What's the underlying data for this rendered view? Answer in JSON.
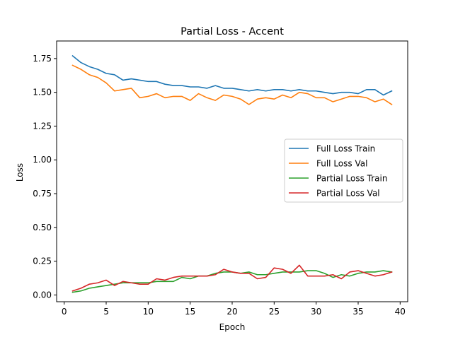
{
  "chart_data": {
    "type": "line",
    "title": "Partial Loss - Accent",
    "xlabel": "Epoch",
    "ylabel": "Loss",
    "xlim": [
      -0.9,
      40.9
    ],
    "ylim": [
      -0.05,
      1.88
    ],
    "xticks": [
      0,
      5,
      10,
      15,
      20,
      25,
      30,
      35,
      40
    ],
    "xtick_labels": [
      "0",
      "5",
      "10",
      "15",
      "20",
      "25",
      "30",
      "35",
      "40"
    ],
    "yticks": [
      0.0,
      0.25,
      0.5,
      0.75,
      1.0,
      1.25,
      1.5,
      1.75
    ],
    "ytick_labels": [
      "0.00",
      "0.25",
      "0.50",
      "0.75",
      "1.00",
      "1.25",
      "1.50",
      "1.75"
    ],
    "grid": false,
    "legend_position": "center-right",
    "x": [
      1,
      2,
      3,
      4,
      5,
      6,
      7,
      8,
      9,
      10,
      11,
      12,
      13,
      14,
      15,
      16,
      17,
      18,
      19,
      20,
      21,
      22,
      23,
      24,
      25,
      26,
      27,
      28,
      29,
      30,
      31,
      32,
      33,
      34,
      35,
      36,
      37,
      38,
      39
    ],
    "series": [
      {
        "name": "Full Loss Train",
        "color": "#1f77b4",
        "values": [
          1.77,
          1.72,
          1.69,
          1.67,
          1.64,
          1.63,
          1.59,
          1.6,
          1.59,
          1.58,
          1.58,
          1.56,
          1.55,
          1.55,
          1.54,
          1.54,
          1.53,
          1.55,
          1.53,
          1.53,
          1.52,
          1.51,
          1.52,
          1.51,
          1.52,
          1.52,
          1.51,
          1.52,
          1.51,
          1.51,
          1.5,
          1.49,
          1.5,
          1.5,
          1.49,
          1.52,
          1.52,
          1.48,
          1.51
        ]
      },
      {
        "name": "Full Loss Val",
        "color": "#ff7f0e",
        "values": [
          1.7,
          1.67,
          1.63,
          1.61,
          1.57,
          1.51,
          1.52,
          1.53,
          1.46,
          1.47,
          1.49,
          1.46,
          1.47,
          1.47,
          1.44,
          1.49,
          1.46,
          1.44,
          1.48,
          1.47,
          1.45,
          1.41,
          1.45,
          1.46,
          1.45,
          1.48,
          1.46,
          1.5,
          1.49,
          1.46,
          1.46,
          1.43,
          1.45,
          1.47,
          1.47,
          1.46,
          1.43,
          1.45,
          1.41
        ]
      },
      {
        "name": "Partial Loss Train",
        "color": "#2ca02c",
        "values": [
          0.02,
          0.03,
          0.05,
          0.06,
          0.07,
          0.08,
          0.09,
          0.09,
          0.09,
          0.09,
          0.1,
          0.1,
          0.1,
          0.13,
          0.12,
          0.14,
          0.14,
          0.16,
          0.17,
          0.17,
          0.16,
          0.17,
          0.15,
          0.15,
          0.16,
          0.17,
          0.17,
          0.17,
          0.18,
          0.18,
          0.16,
          0.13,
          0.15,
          0.14,
          0.16,
          0.17,
          0.17,
          0.18,
          0.17
        ]
      },
      {
        "name": "Partial Loss Val",
        "color": "#d62728",
        "values": [
          0.03,
          0.05,
          0.08,
          0.09,
          0.11,
          0.07,
          0.1,
          0.09,
          0.08,
          0.08,
          0.12,
          0.11,
          0.13,
          0.14,
          0.14,
          0.14,
          0.14,
          0.15,
          0.19,
          0.17,
          0.16,
          0.16,
          0.12,
          0.13,
          0.2,
          0.19,
          0.16,
          0.22,
          0.14,
          0.14,
          0.14,
          0.15,
          0.12,
          0.17,
          0.18,
          0.16,
          0.14,
          0.15,
          0.17
        ]
      }
    ]
  }
}
